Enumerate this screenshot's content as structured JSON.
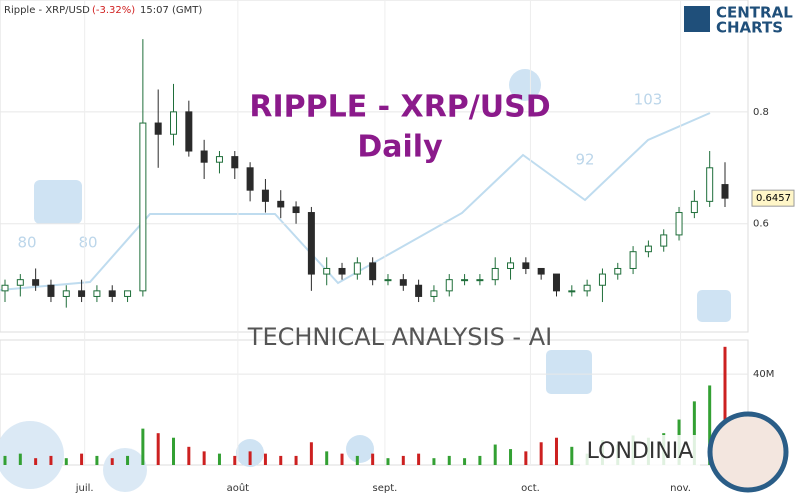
{
  "chart_data": {
    "type": "candlestick",
    "header": {
      "symbol": "Ripple - XRP/USD",
      "change": "(-3.32%)",
      "time": "15:07 (GMT)"
    },
    "logo": {
      "line1": "CENTRAL",
      "line2": "CHARTS"
    },
    "title": "RIPPLE - XRP/USD",
    "subtitle": "Daily",
    "banner": "TECHNICAL  ANALYSIS - AI",
    "brand": "LONDINIA",
    "watermark_labels": [
      "80",
      "80",
      "92",
      "103"
    ],
    "last_price": 0.6457,
    "up_color": "#1f6e3a",
    "down_color": "#2a2a2a",
    "volume_up_color": "#33a033",
    "volume_down_color": "#cc2020",
    "ylim": [
      0.41,
      1.0
    ],
    "yticks": [
      0.6,
      0.8
    ],
    "volume_ylim": [
      0,
      55
    ],
    "volume_yticks": [
      {
        "value": 40,
        "label": "40M"
      }
    ],
    "xticks": [
      {
        "value": 5.2,
        "label": "juil."
      },
      {
        "value": 15.2,
        "label": "août"
      },
      {
        "value": 24.8,
        "label": "sept."
      },
      {
        "value": 34.3,
        "label": "oct."
      },
      {
        "value": 44.1,
        "label": "nov."
      }
    ],
    "open": [
      0.48,
      0.49,
      0.5,
      0.49,
      0.47,
      0.48,
      0.47,
      0.48,
      0.47,
      0.48,
      0.78,
      0.76,
      0.8,
      0.73,
      0.71,
      0.72,
      0.7,
      0.66,
      0.64,
      0.63,
      0.62,
      0.51,
      0.52,
      0.51,
      0.53,
      0.5,
      0.5,
      0.49,
      0.47,
      0.48,
      0.5,
      0.5,
      0.5,
      0.52,
      0.53,
      0.52,
      0.51,
      0.48,
      0.48,
      0.49,
      0.51,
      0.52,
      0.55,
      0.56,
      0.58,
      0.62,
      0.64,
      0.67
    ],
    "high": [
      0.5,
      0.51,
      0.52,
      0.5,
      0.49,
      0.5,
      0.49,
      0.49,
      0.48,
      0.93,
      0.84,
      0.85,
      0.82,
      0.75,
      0.73,
      0.73,
      0.71,
      0.68,
      0.66,
      0.64,
      0.63,
      0.54,
      0.53,
      0.54,
      0.54,
      0.51,
      0.51,
      0.5,
      0.49,
      0.51,
      0.51,
      0.51,
      0.54,
      0.54,
      0.54,
      0.52,
      0.51,
      0.49,
      0.5,
      0.52,
      0.53,
      0.56,
      0.57,
      0.59,
      0.63,
      0.66,
      0.73,
      0.71
    ],
    "low": [
      0.46,
      0.47,
      0.48,
      0.46,
      0.45,
      0.46,
      0.46,
      0.46,
      0.46,
      0.47,
      0.7,
      0.74,
      0.72,
      0.68,
      0.69,
      0.68,
      0.64,
      0.62,
      0.61,
      0.6,
      0.48,
      0.49,
      0.5,
      0.5,
      0.49,
      0.49,
      0.48,
      0.46,
      0.46,
      0.47,
      0.49,
      0.49,
      0.49,
      0.5,
      0.51,
      0.5,
      0.47,
      0.47,
      0.47,
      0.46,
      0.5,
      0.51,
      0.54,
      0.55,
      0.57,
      0.61,
      0.63,
      0.63
    ],
    "close": [
      0.49,
      0.5,
      0.49,
      0.47,
      0.48,
      0.47,
      0.48,
      0.47,
      0.48,
      0.78,
      0.76,
      0.8,
      0.73,
      0.71,
      0.72,
      0.7,
      0.66,
      0.64,
      0.63,
      0.62,
      0.51,
      0.52,
      0.51,
      0.53,
      0.5,
      0.5,
      0.49,
      0.47,
      0.48,
      0.5,
      0.5,
      0.5,
      0.52,
      0.53,
      0.52,
      0.51,
      0.48,
      0.48,
      0.49,
      0.51,
      0.52,
      0.55,
      0.56,
      0.58,
      0.62,
      0.64,
      0.7,
      0.6457
    ],
    "volume": [
      4,
      5,
      3,
      4,
      3,
      5,
      4,
      3,
      4,
      16,
      14,
      12,
      8,
      6,
      5,
      4,
      6,
      5,
      4,
      4,
      10,
      6,
      5,
      4,
      5,
      3,
      4,
      5,
      3,
      4,
      3,
      4,
      9,
      7,
      6,
      10,
      12,
      8,
      5,
      11,
      9,
      13,
      12,
      14,
      20,
      28,
      35,
      52
    ]
  }
}
